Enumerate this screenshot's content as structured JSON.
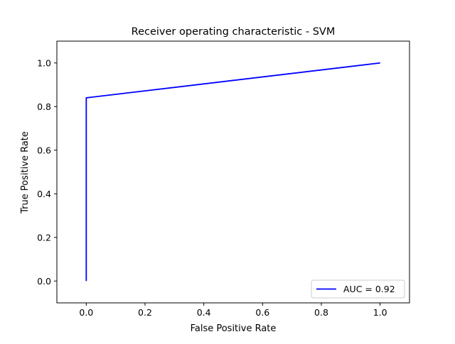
{
  "chart_data": {
    "type": "line",
    "title": "Receiver operating characteristic - SVM",
    "xlabel": "False Positive Rate",
    "ylabel": "True Positive Rate",
    "xlim": [
      -0.1,
      1.1
    ],
    "ylim": [
      -0.1,
      1.1
    ],
    "xticks": [
      0.0,
      0.2,
      0.4,
      0.6,
      0.8,
      1.0
    ],
    "yticks": [
      0.0,
      0.2,
      0.4,
      0.6,
      0.8,
      1.0
    ],
    "xtick_labels": [
      "0.0",
      "0.2",
      "0.4",
      "0.6",
      "0.8",
      "1.0"
    ],
    "ytick_labels": [
      "0.0",
      "0.2",
      "0.4",
      "0.6",
      "0.8",
      "1.0"
    ],
    "grid": false,
    "legend_position": "bottom-right",
    "series": [
      {
        "name": "AUC = 0.92",
        "color": "#0000ff",
        "x": [
          0.0,
          0.0,
          1.0
        ],
        "y": [
          0.0,
          0.84,
          1.0
        ]
      }
    ]
  }
}
